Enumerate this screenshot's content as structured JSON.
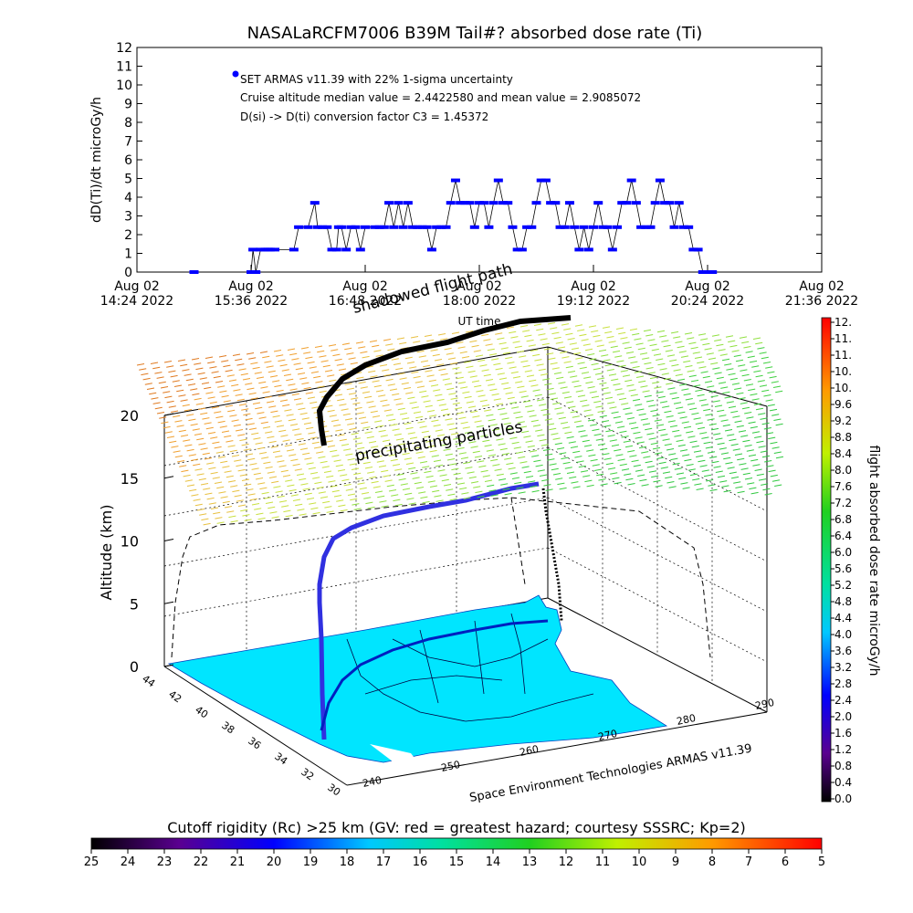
{
  "top": {
    "title": "NASALaRCFM7006  B39M Tail#? absorbed dose rate (Ti)",
    "ylabel": "dD(Ti)/dt microGy/h",
    "xlabel": "UT time",
    "legend": [
      "SET ARMAS v11.39 with 22% 1-sigma uncertainty",
      "Cruise altitude median value = 2.4422580 and mean value = 2.9085072",
      "D(si) -> D(ti) conversion factor C3 = 1.45372"
    ],
    "series_color": "#0000ff"
  },
  "three_d": {
    "zlabel": "Altitude (km)",
    "z_ticks": [
      "0",
      "5",
      "10",
      "15",
      "20"
    ],
    "lat_ticks": [
      "44",
      "42",
      "40",
      "38",
      "36",
      "34",
      "32",
      "30"
    ],
    "lon_ticks": [
      "240",
      "250",
      "260",
      "270",
      "280",
      "290"
    ],
    "labels": {
      "shadow": "shadowed flight path",
      "precip": "precipitating particles",
      "credit": "Space Environment Technologies ARMAS v11.39"
    },
    "map_color": "#00e5ff"
  },
  "right_bar": {
    "label": "flight absorbed dose rate microGy/h",
    "ticks": [
      "0.0",
      "0.4",
      "0.8",
      "1.2",
      "1.6",
      "2.0",
      "2.4",
      "2.8",
      "3.2",
      "3.6",
      "4.0",
      "4.4",
      "4.8",
      "5.2",
      "5.6",
      "6.0",
      "6.4",
      "6.8",
      "7.2",
      "7.6",
      "8.0",
      "8.4",
      "8.8",
      "9.2",
      "9.6",
      "10.",
      "10.",
      "11.",
      "11.",
      "12."
    ]
  },
  "bottom_bar": {
    "title": "Cutoff rigidity (Rc) >25 km (GV: red = greatest hazard; courtesy SSSRC; Kp=2)",
    "ticks": [
      "25",
      "24",
      "23",
      "22",
      "21",
      "20",
      "19",
      "18",
      "17",
      "16",
      "15",
      "14",
      "13",
      "12",
      "11",
      "10",
      "9",
      "8",
      "7",
      "6",
      "5"
    ]
  },
  "chart_data": {
    "type": "line",
    "title": "NASALaRCFM7006  B39M Tail#? absorbed dose rate (Ti)",
    "xlabel": "UT time",
    "ylabel": "dD(Ti)/dt microGy/h",
    "ylim": [
      0,
      12
    ],
    "y_ticks": [
      0,
      1,
      2,
      3,
      4,
      5,
      6,
      7,
      8,
      9,
      10,
      11,
      12
    ],
    "x_ticks": [
      "Aug 02 14:24 2022",
      "Aug 02 15:36 2022",
      "Aug 02 16:48 2022",
      "Aug 02 18:00 2022",
      "Aug 02 19:12 2022",
      "Aug 02 20:24 2022",
      "Aug 02 21:36 2022"
    ],
    "xlim_hours": [
      14.4,
      21.6
    ],
    "series": [
      {
        "x_hours": [
          15.0,
          15.6,
          15.62,
          15.65,
          15.7,
          15.75,
          15.78,
          15.8,
          15.85,
          16.05,
          16.1,
          16.2,
          16.27,
          16.3,
          16.35,
          16.4,
          16.45,
          16.5,
          16.52,
          16.55,
          16.6,
          16.65,
          16.7,
          16.75,
          16.8,
          16.9,
          16.95,
          17.0,
          17.05,
          17.1,
          17.15,
          17.2,
          17.25,
          17.3,
          17.35,
          17.4,
          17.45,
          17.5,
          17.55,
          17.6,
          17.65,
          17.7,
          17.75,
          17.8,
          17.85,
          17.9,
          17.95,
          18.0,
          18.05,
          18.1,
          18.15,
          18.2,
          18.25,
          18.3,
          18.35,
          18.4,
          18.45,
          18.5,
          18.55,
          18.6,
          18.65,
          18.7,
          18.75,
          18.8,
          18.85,
          18.9,
          18.95,
          19.0,
          19.05,
          19.1,
          19.15,
          19.2,
          19.25,
          19.3,
          19.35,
          19.4,
          19.45,
          19.5,
          19.55,
          19.6,
          19.65,
          19.7,
          19.75,
          19.8,
          19.85,
          19.9,
          19.95,
          20.0,
          20.05,
          20.1,
          20.15,
          20.2,
          20.25,
          20.3,
          20.35,
          20.4,
          20.45
        ],
        "values": [
          0,
          0,
          1.2,
          0,
          1.2,
          1.2,
          1.2,
          1.2,
          1.2,
          1.2,
          2.4,
          2.4,
          3.7,
          2.4,
          2.4,
          2.4,
          1.2,
          1.2,
          2.4,
          2.4,
          1.2,
          2.4,
          2.4,
          1.2,
          2.4,
          2.4,
          2.4,
          2.4,
          3.7,
          2.4,
          3.7,
          2.4,
          3.7,
          2.4,
          2.4,
          2.4,
          2.4,
          1.2,
          2.4,
          2.4,
          2.4,
          3.7,
          4.9,
          3.7,
          3.7,
          3.7,
          2.4,
          3.7,
          3.7,
          2.4,
          3.7,
          4.9,
          3.7,
          3.7,
          2.4,
          1.2,
          1.2,
          2.4,
          2.4,
          3.7,
          4.9,
          4.9,
          3.7,
          3.7,
          2.4,
          2.4,
          3.7,
          2.4,
          1.2,
          2.4,
          1.2,
          2.4,
          3.7,
          2.4,
          2.4,
          1.2,
          2.4,
          3.7,
          3.7,
          4.9,
          3.7,
          2.4,
          2.4,
          2.4,
          3.7,
          4.9,
          3.7,
          3.7,
          2.4,
          3.7,
          2.4,
          2.4,
          1.2,
          1.2,
          0,
          0,
          0
        ]
      }
    ]
  }
}
